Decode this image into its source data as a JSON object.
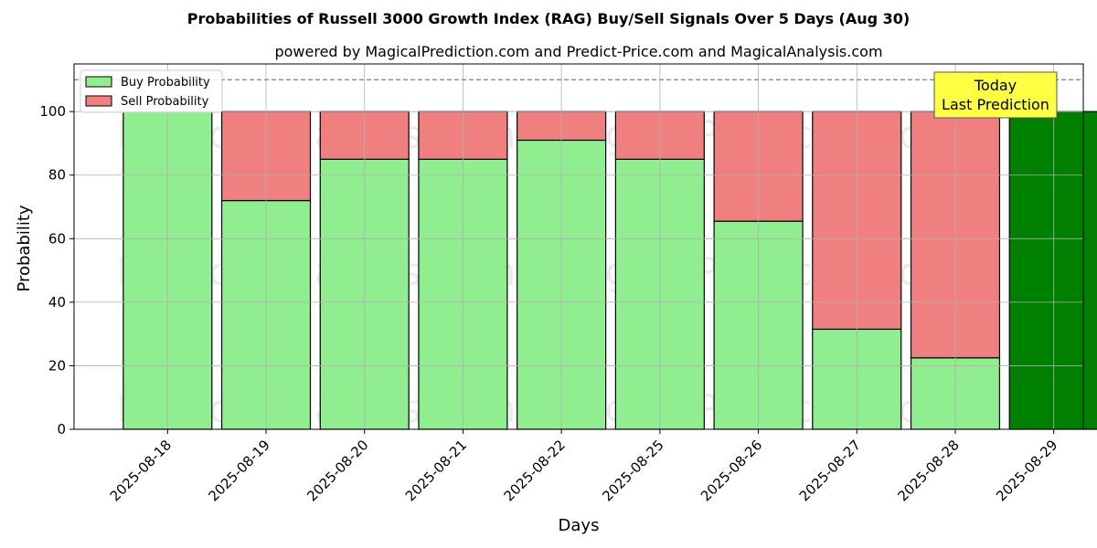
{
  "chart_data": {
    "type": "bar",
    "stacked": true,
    "title": "Probabilities of Russell 3000 Growth Index (RAG) Buy/Sell Signals Over 5 Days (Aug 30)",
    "subtitle": "powered by MagicalPrediction.com and Predict-Price.com and MagicalAnalysis.com",
    "xlabel": "Days",
    "ylabel": "Probability",
    "ylim": [
      0,
      115
    ],
    "yticks": [
      0,
      20,
      40,
      60,
      80,
      100
    ],
    "grid": true,
    "reference_line": 110,
    "categories": [
      "2025-08-18",
      "2025-08-19",
      "2025-08-20",
      "2025-08-21",
      "2025-08-22",
      "2025-08-25",
      "2025-08-26",
      "2025-08-27",
      "2025-08-28",
      "2025-08-29"
    ],
    "series": [
      {
        "name": "Buy Probability",
        "color": "#90ee90",
        "values": [
          100,
          72,
          85,
          85,
          91,
          85,
          65.5,
          31.5,
          22.5,
          100
        ]
      },
      {
        "name": "Sell Probability",
        "color": "#f08080",
        "values": [
          0,
          28,
          15,
          15,
          9,
          15,
          34.5,
          68.5,
          77.5,
          0
        ]
      }
    ],
    "highlight": {
      "index": 9,
      "color": "#008000"
    },
    "legend": {
      "position": "top-left"
    },
    "annotation": {
      "line1": "Today",
      "line2": "Last Prediction",
      "color": "#ffff44"
    },
    "watermarks": [
      "MagicalAnalysis.com",
      "MagicalPrediction.com"
    ]
  }
}
